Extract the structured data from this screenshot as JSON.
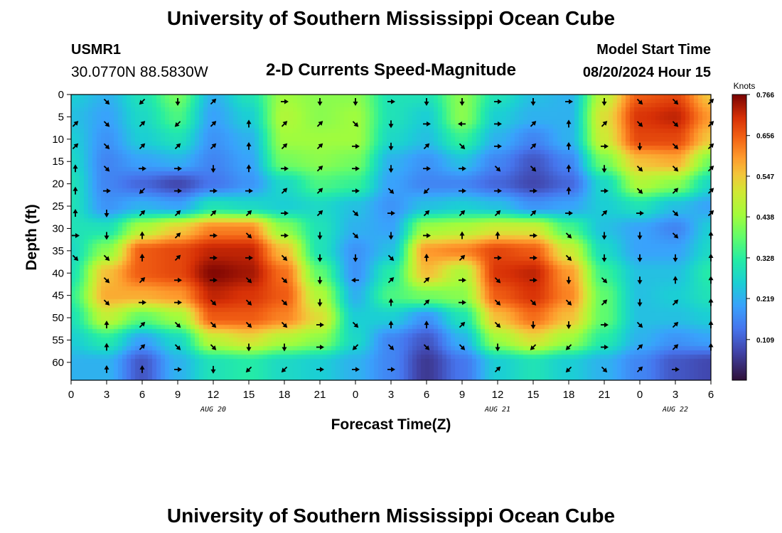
{
  "header": {
    "title": "University of Southern Mississippi Ocean Cube",
    "station": "USMR1",
    "coords": "30.0770N  88.5830W",
    "subtitle": "2-D Currents Speed-Magnitude",
    "model_label": "Model Start Time",
    "model_time": "08/20/2024 Hour 15"
  },
  "footer": {
    "title": "University of Southern Mississippi Ocean Cube"
  },
  "chart_data": {
    "type": "heatmap",
    "title": "2-D Currents Speed-Magnitude",
    "xlabel": "Forecast Time(Z)",
    "ylabel": "Depth (ft)",
    "x_ticks": [
      "0",
      "3",
      "6",
      "9",
      "12",
      "15",
      "18",
      "21",
      "0",
      "3",
      "6",
      "9",
      "12",
      "15",
      "18",
      "21",
      "0",
      "3",
      "6"
    ],
    "x_range_hours": [
      0,
      54
    ],
    "y_ticks": [
      "0",
      "5",
      "10",
      "15",
      "20",
      "25",
      "30",
      "35",
      "40",
      "45",
      "50",
      "55",
      "60"
    ],
    "y_range_ft": [
      0,
      64
    ],
    "date_labels": [
      {
        "text": "AUG 20",
        "hour": 12
      },
      {
        "text": "AUG 21",
        "hour": 36
      },
      {
        "text": "AUG 22",
        "hour": 51
      }
    ],
    "colorbar": {
      "unit": "Knots",
      "min": 0.0,
      "max": 0.766,
      "tick_values": [
        0.766,
        0.656,
        0.547,
        0.438,
        0.328,
        0.219,
        0.109
      ],
      "tick_labels": [
        "0.766",
        "0.656",
        "0.547",
        "0.438",
        "0.328",
        "0.219",
        "0.109"
      ]
    },
    "grid_x_hours": [
      0,
      3,
      6,
      9,
      12,
      15,
      18,
      21,
      24,
      27,
      30,
      33,
      36,
      39,
      42,
      45,
      48,
      51,
      54
    ],
    "grid_y_ft": [
      0,
      5,
      10,
      15,
      20,
      25,
      30,
      35,
      40,
      45,
      50,
      55,
      60
    ],
    "speed_knots": [
      [
        0.26,
        0.22,
        0.3,
        0.4,
        0.22,
        0.3,
        0.44,
        0.42,
        0.42,
        0.3,
        0.3,
        0.42,
        0.3,
        0.24,
        0.22,
        0.48,
        0.66,
        0.68,
        0.55
      ],
      [
        0.24,
        0.2,
        0.28,
        0.36,
        0.2,
        0.26,
        0.46,
        0.42,
        0.44,
        0.3,
        0.26,
        0.42,
        0.26,
        0.22,
        0.22,
        0.52,
        0.7,
        0.72,
        0.6
      ],
      [
        0.26,
        0.18,
        0.26,
        0.3,
        0.18,
        0.22,
        0.44,
        0.44,
        0.44,
        0.28,
        0.24,
        0.34,
        0.22,
        0.16,
        0.22,
        0.5,
        0.68,
        0.68,
        0.55
      ],
      [
        0.28,
        0.16,
        0.2,
        0.22,
        0.16,
        0.2,
        0.4,
        0.42,
        0.4,
        0.22,
        0.18,
        0.24,
        0.16,
        0.1,
        0.16,
        0.4,
        0.56,
        0.58,
        0.4
      ],
      [
        0.3,
        0.16,
        0.12,
        0.08,
        0.14,
        0.18,
        0.28,
        0.36,
        0.34,
        0.2,
        0.16,
        0.16,
        0.12,
        0.08,
        0.12,
        0.28,
        0.46,
        0.42,
        0.28
      ],
      [
        0.3,
        0.18,
        0.22,
        0.2,
        0.3,
        0.28,
        0.26,
        0.28,
        0.24,
        0.18,
        0.24,
        0.26,
        0.24,
        0.18,
        0.2,
        0.26,
        0.3,
        0.24,
        0.2
      ],
      [
        0.3,
        0.3,
        0.46,
        0.54,
        0.62,
        0.62,
        0.42,
        0.3,
        0.22,
        0.2,
        0.44,
        0.46,
        0.5,
        0.5,
        0.36,
        0.24,
        0.2,
        0.16,
        0.26
      ],
      [
        0.28,
        0.42,
        0.66,
        0.68,
        0.72,
        0.72,
        0.56,
        0.3,
        0.18,
        0.24,
        0.6,
        0.62,
        0.68,
        0.66,
        0.5,
        0.28,
        0.2,
        0.2,
        0.28
      ],
      [
        0.3,
        0.56,
        0.66,
        0.68,
        0.76,
        0.74,
        0.64,
        0.38,
        0.18,
        0.32,
        0.56,
        0.46,
        0.7,
        0.72,
        0.6,
        0.34,
        0.24,
        0.24,
        0.32
      ],
      [
        0.34,
        0.58,
        0.58,
        0.6,
        0.72,
        0.7,
        0.66,
        0.46,
        0.22,
        0.36,
        0.4,
        0.42,
        0.66,
        0.7,
        0.62,
        0.38,
        0.24,
        0.26,
        0.3
      ],
      [
        0.3,
        0.48,
        0.38,
        0.44,
        0.66,
        0.66,
        0.62,
        0.52,
        0.26,
        0.26,
        0.18,
        0.3,
        0.56,
        0.64,
        0.56,
        0.38,
        0.24,
        0.24,
        0.26
      ],
      [
        0.26,
        0.32,
        0.2,
        0.28,
        0.48,
        0.52,
        0.46,
        0.42,
        0.28,
        0.16,
        0.1,
        0.22,
        0.44,
        0.52,
        0.44,
        0.32,
        0.22,
        0.18,
        0.2
      ],
      [
        0.22,
        0.22,
        0.1,
        0.22,
        0.3,
        0.32,
        0.28,
        0.26,
        0.22,
        0.16,
        0.06,
        0.14,
        0.26,
        0.3,
        0.26,
        0.22,
        0.16,
        0.1,
        0.08
      ]
    ],
    "direction_deg": [
      [
        null,
        135,
        225,
        180,
        45,
        null,
        90,
        180,
        180,
        90,
        180,
        180,
        90,
        180,
        90,
        180,
        135,
        135,
        45
      ],
      [
        45,
        135,
        45,
        225,
        45,
        0,
        45,
        45,
        135,
        180,
        90,
        270,
        90,
        45,
        0,
        45,
        135,
        135,
        45
      ],
      [
        45,
        135,
        45,
        45,
        45,
        0,
        45,
        45,
        90,
        180,
        45,
        135,
        90,
        45,
        0,
        90,
        180,
        135,
        45
      ],
      [
        0,
        135,
        90,
        90,
        180,
        0,
        90,
        45,
        90,
        180,
        90,
        90,
        135,
        135,
        0,
        180,
        135,
        135,
        45
      ],
      [
        0,
        90,
        225,
        90,
        90,
        90,
        45,
        45,
        90,
        135,
        225,
        90,
        90,
        90,
        0,
        90,
        135,
        45,
        45
      ],
      [
        0,
        180,
        45,
        45,
        45,
        45,
        90,
        45,
        135,
        90,
        45,
        45,
        45,
        45,
        90,
        45,
        90,
        135,
        45
      ],
      [
        90,
        180,
        0,
        45,
        90,
        135,
        90,
        180,
        135,
        180,
        90,
        0,
        0,
        90,
        135,
        180,
        180,
        135,
        0
      ],
      [
        135,
        135,
        0,
        45,
        90,
        90,
        135,
        180,
        180,
        135,
        0,
        45,
        90,
        90,
        135,
        180,
        180,
        180,
        0
      ],
      [
        null,
        135,
        45,
        90,
        90,
        135,
        135,
        180,
        270,
        45,
        45,
        90,
        135,
        90,
        180,
        135,
        180,
        0,
        0
      ],
      [
        null,
        135,
        90,
        90,
        135,
        135,
        135,
        180,
        null,
        0,
        45,
        90,
        135,
        135,
        135,
        45,
        180,
        45,
        0
      ],
      [
        null,
        0,
        45,
        135,
        135,
        135,
        135,
        90,
        135,
        0,
        0,
        45,
        135,
        180,
        180,
        90,
        135,
        45,
        0
      ],
      [
        null,
        0,
        45,
        135,
        135,
        180,
        180,
        90,
        225,
        135,
        135,
        135,
        180,
        225,
        225,
        90,
        45,
        45,
        0
      ],
      [
        null,
        0,
        0,
        90,
        180,
        225,
        225,
        90,
        90,
        90,
        null,
        null,
        45,
        null,
        225,
        135,
        45,
        90,
        null
      ]
    ]
  }
}
